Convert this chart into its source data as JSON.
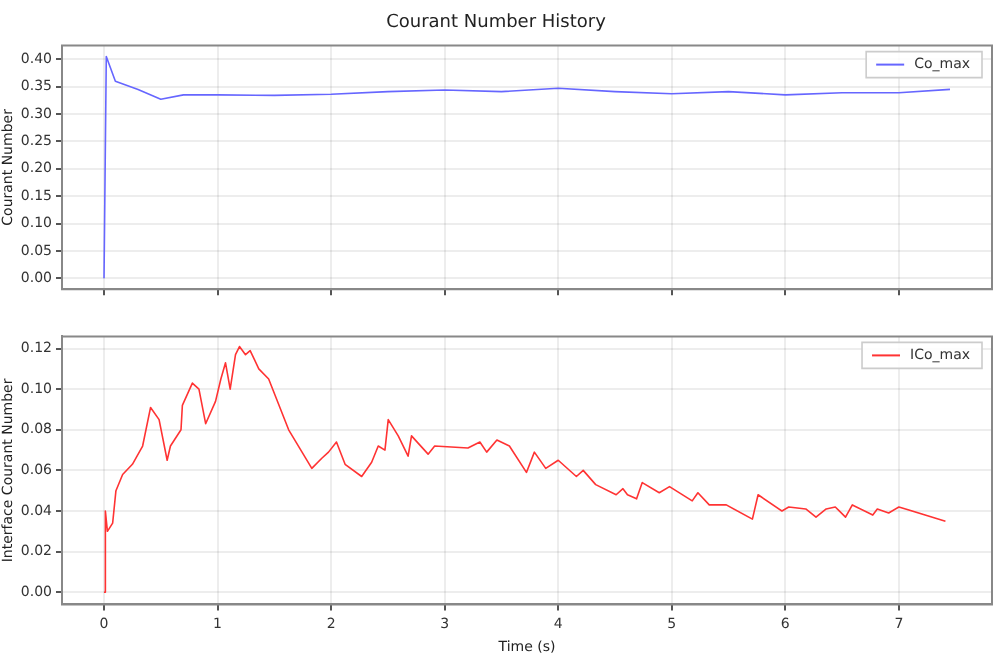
{
  "chart_data": [
    {
      "type": "line",
      "title": "Courant Number History",
      "ylabel": "Courant Number",
      "xlim": [
        -0.37,
        7.82
      ],
      "xticks": [
        0,
        1,
        2,
        3,
        4,
        5,
        6,
        7
      ],
      "ylim": [
        -0.02,
        0.425
      ],
      "yticks": [
        {
          "value": 0,
          "label": "0.00"
        },
        {
          "value": 0.05,
          "label": "0.05"
        },
        {
          "value": 0.1,
          "label": "0.10"
        },
        {
          "value": 0.15,
          "label": "0.15"
        },
        {
          "value": 0.2,
          "label": "0.20"
        },
        {
          "value": 0.25,
          "label": "0.25"
        },
        {
          "value": 0.3,
          "label": "0.30"
        },
        {
          "value": 0.35,
          "label": "0.35"
        },
        {
          "value": 0.4,
          "label": "0.40"
        }
      ],
      "tick_labels": "y",
      "grid": true,
      "legend": "top right",
      "series": [
        {
          "name": "Co_max",
          "color": "#6666ff",
          "x": [
            0,
            0.02,
            0.1,
            0.3,
            0.5,
            0.7,
            1.0,
            1.5,
            2.0,
            2.5,
            3.0,
            3.5,
            4.0,
            4.5,
            5.0,
            5.5,
            6.0,
            6.5,
            7.0,
            7.45
          ],
          "values": [
            0,
            0.405,
            0.36,
            0.345,
            0.327,
            0.335,
            0.335,
            0.334,
            0.336,
            0.341,
            0.344,
            0.341,
            0.347,
            0.341,
            0.337,
            0.341,
            0.335,
            0.339,
            0.339,
            0.345
          ]
        }
      ]
    },
    {
      "type": "line",
      "xlabel": "Time (s)",
      "ylabel": "Interface Courant Number",
      "xlim": [
        -0.37,
        7.82
      ],
      "xticks": [
        0,
        1,
        2,
        3,
        4,
        5,
        6,
        7
      ],
      "ylim": [
        -0.006,
        0.126
      ],
      "yticks": [
        {
          "value": 0,
          "label": "0.00"
        },
        {
          "value": 0.02,
          "label": "0.02"
        },
        {
          "value": 0.04,
          "label": "0.04"
        },
        {
          "value": 0.06,
          "label": "0.06"
        },
        {
          "value": 0.08,
          "label": "0.08"
        },
        {
          "value": 0.1,
          "label": "0.10"
        },
        {
          "value": 0.12,
          "label": "0.12"
        }
      ],
      "grid": true,
      "legend": "top right",
      "series": [
        {
          "name": "ICo_max",
          "color": "#ff3333",
          "x": [
            0,
            0.012,
            0.03,
            0.076,
            0.105,
            0.164,
            0.25,
            0.34,
            0.41,
            0.485,
            0.556,
            0.585,
            0.678,
            0.69,
            0.778,
            0.836,
            0.895,
            0.982,
            1.029,
            1.07,
            1.111,
            1.158,
            1.193,
            1.246,
            1.287,
            1.363,
            1.45,
            1.626,
            1.83,
            1.918,
            1.977,
            2.047,
            2.123,
            2.269,
            2.357,
            2.415,
            2.474,
            2.503,
            2.591,
            2.678,
            2.708,
            2.854,
            2.912,
            3.205,
            3.31,
            3.37,
            3.46,
            3.57,
            3.72,
            3.79,
            3.89,
            4.0,
            4.16,
            4.22,
            4.33,
            4.51,
            4.57,
            4.61,
            4.69,
            4.74,
            4.89,
            4.98,
            5.18,
            5.23,
            5.33,
            5.48,
            5.71,
            5.76,
            5.97,
            6.03,
            6.18,
            6.27,
            6.36,
            6.44,
            6.53,
            6.59,
            6.77,
            6.81,
            6.91,
            7.0,
            7.41
          ],
          "values": [
            0,
            0.04,
            0.03,
            0.034,
            0.05,
            0.058,
            0.063,
            0.072,
            0.091,
            0.085,
            0.065,
            0.072,
            0.08,
            0.092,
            0.103,
            0.1,
            0.083,
            0.094,
            0.105,
            0.113,
            0.1,
            0.117,
            0.121,
            0.117,
            0.119,
            0.11,
            0.105,
            0.08,
            0.061,
            0.066,
            0.069,
            0.074,
            0.063,
            0.057,
            0.064,
            0.072,
            0.07,
            0.085,
            0.077,
            0.067,
            0.077,
            0.068,
            0.072,
            0.071,
            0.074,
            0.069,
            0.075,
            0.072,
            0.059,
            0.069,
            0.061,
            0.065,
            0.057,
            0.06,
            0.053,
            0.048,
            0.051,
            0.048,
            0.046,
            0.054,
            0.049,
            0.052,
            0.045,
            0.049,
            0.043,
            0.043,
            0.036,
            0.048,
            0.04,
            0.042,
            0.041,
            0.037,
            0.041,
            0.042,
            0.037,
            0.043,
            0.038,
            0.041,
            0.039,
            0.042,
            0.035
          ]
        }
      ]
    }
  ]
}
